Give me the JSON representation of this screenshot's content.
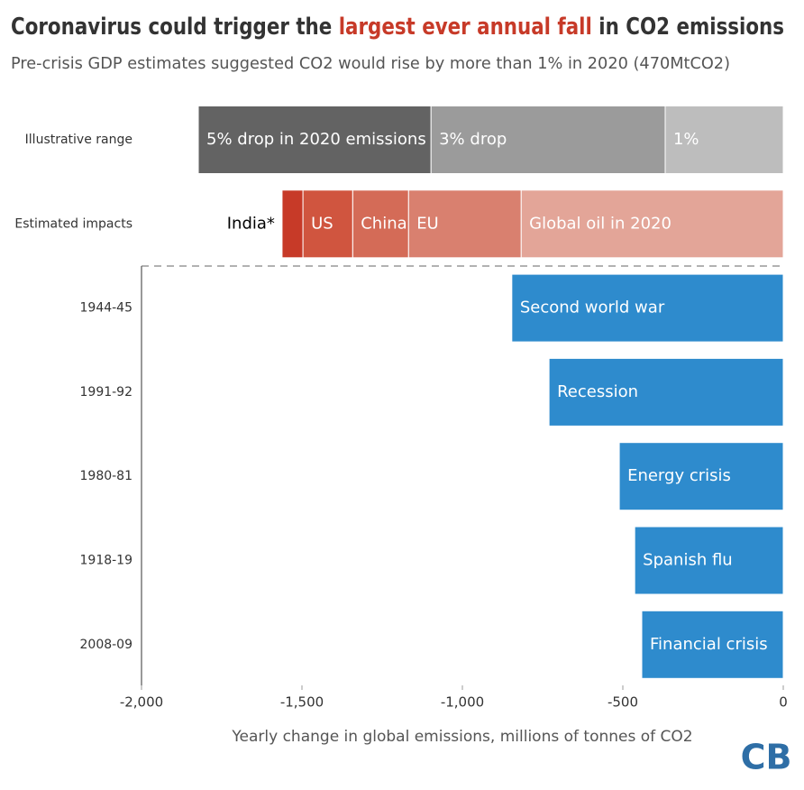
{
  "chart_data": {
    "type": "hbar-stacked",
    "title_parts": [
      "Coronavirus could trigger the ",
      "largest ever annual fall",
      " in CO2 emissions"
    ],
    "title_highlight_color": "#c73a28",
    "subtitle": "Pre-crisis GDP estimates suggested CO2 would rise by more than 1% in 2020 (470MtCO2)",
    "xlabel": "Yearly change in global emissions, millions of tonnes of CO2",
    "logo": "CB",
    "xlim": [
      -2000,
      0
    ],
    "xticks": [
      {
        "value": -2000,
        "label": "-2,000"
      },
      {
        "value": -1500,
        "label": "-1,500"
      },
      {
        "value": -1000,
        "label": "-1,000"
      },
      {
        "value": -500,
        "label": "-500"
      },
      0
    ],
    "separator_after_row": 1,
    "rows": [
      {
        "label": "Illustrative range",
        "segments": [
          {
            "name": "1%",
            "value": -368,
            "color": "#bdbdbd"
          },
          {
            "name": "3% drop",
            "value": -730,
            "color": "#9b9b9b"
          },
          {
            "name": "5% drop in 2020 emissions",
            "value": -725,
            "color": "#636363"
          }
        ]
      },
      {
        "label": "Estimated impacts",
        "segments": [
          {
            "name": "Global oil in 2020",
            "value": -817,
            "color": "#e3a598"
          },
          {
            "name": "EU",
            "value": -351,
            "color": "#d9806f"
          },
          {
            "name": "China",
            "value": -174,
            "color": "#d46b57"
          },
          {
            "name": "US",
            "value": -155,
            "color": "#d0553f"
          },
          {
            "name": "India*",
            "value": -65,
            "color": "#c73a28",
            "label_position": "outside"
          }
        ]
      },
      {
        "label": "1944-45",
        "segments": [
          {
            "name": "Second world war",
            "value": -846,
            "color": "#2e8bcd"
          }
        ]
      },
      {
        "label": "1991-92",
        "segments": [
          {
            "name": "Recession",
            "value": -730,
            "color": "#2e8bcd"
          }
        ]
      },
      {
        "label": "1980-81",
        "segments": [
          {
            "name": "Energy crisis",
            "value": -511,
            "color": "#2e8bcd"
          }
        ]
      },
      {
        "label": "1918-19",
        "segments": [
          {
            "name": "Spanish flu",
            "value": -463,
            "color": "#2e8bcd"
          }
        ]
      },
      {
        "label": "2008-09",
        "segments": [
          {
            "name": "Financial crisis",
            "value": -441,
            "color": "#2e8bcd"
          }
        ]
      }
    ]
  }
}
